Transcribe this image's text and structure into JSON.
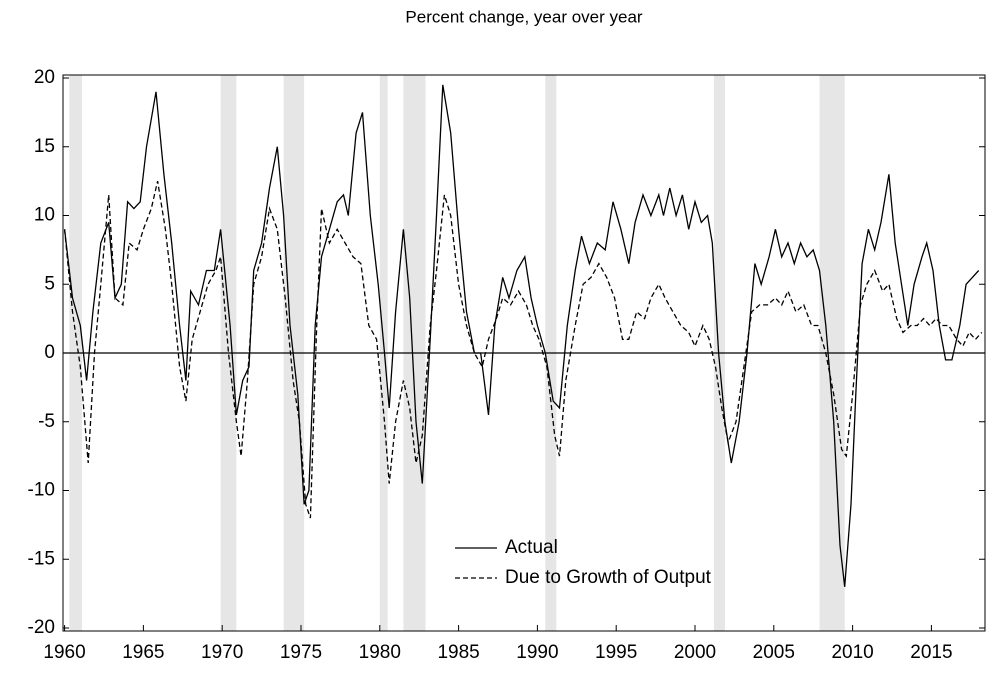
{
  "chart_data": {
    "type": "line",
    "title": "Percent change, year over year",
    "xlim": [
      1959.9,
      2018.4
    ],
    "xticks": [
      1960,
      1965,
      1970,
      1975,
      1980,
      1985,
      1990,
      1995,
      2000,
      2005,
      2010,
      2015
    ],
    "ylim": [
      -20,
      20
    ],
    "yticks": [
      -20,
      -15,
      -10,
      -5,
      0,
      5,
      10,
      15,
      20
    ],
    "zero_line": true,
    "legend": "lower center",
    "shade_color": "#e6e6e6",
    "shaded_periods": [
      [
        1960.3,
        1961.1
      ],
      [
        1969.9,
        1970.9
      ],
      [
        1973.9,
        1975.2
      ],
      [
        1980.0,
        1980.5
      ],
      [
        1981.5,
        1982.9
      ],
      [
        1990.5,
        1991.2
      ],
      [
        2001.2,
        2001.9
      ],
      [
        2007.9,
        2009.5
      ]
    ],
    "series": [
      {
        "name": "Actual",
        "color": "#000000",
        "style": "solid",
        "x": [
          1960.0,
          1960.5,
          1961.0,
          1961.4,
          1961.8,
          1962.3,
          1962.8,
          1963.2,
          1963.6,
          1964.0,
          1964.4,
          1964.8,
          1965.2,
          1965.8,
          1966.3,
          1966.8,
          1967.3,
          1967.7,
          1968.0,
          1968.5,
          1969.0,
          1969.5,
          1969.9,
          1970.5,
          1970.9,
          1971.3,
          1971.7,
          1972.0,
          1972.5,
          1973.0,
          1973.5,
          1973.9,
          1974.3,
          1974.8,
          1975.2,
          1975.5,
          1975.9,
          1976.3,
          1976.8,
          1977.3,
          1977.7,
          1978.0,
          1978.5,
          1978.9,
          1979.4,
          1979.9,
          1980.3,
          1980.6,
          1981.0,
          1981.5,
          1981.9,
          1982.3,
          1982.7,
          1983.2,
          1983.6,
          1984.0,
          1984.5,
          1985.0,
          1985.5,
          1986.0,
          1986.4,
          1986.9,
          1987.3,
          1987.8,
          1988.2,
          1988.7,
          1989.2,
          1989.6,
          1990.0,
          1990.5,
          1991.0,
          1991.4,
          1991.9,
          1992.4,
          1992.8,
          1993.3,
          1993.8,
          1994.3,
          1994.8,
          1995.3,
          1995.8,
          1996.2,
          1996.7,
          1997.2,
          1997.7,
          1998.0,
          1998.4,
          1998.8,
          1999.2,
          1999.6,
          2000.0,
          2000.4,
          2000.8,
          2001.1,
          2001.5,
          2001.9,
          2002.3,
          2002.8,
          2003.3,
          2003.8,
          2004.2,
          2004.7,
          2005.1,
          2005.5,
          2005.9,
          2006.3,
          2006.7,
          2007.1,
          2007.5,
          2007.9,
          2008.3,
          2008.8,
          2009.2,
          2009.5,
          2009.9,
          2010.2,
          2010.6,
          2011.0,
          2011.4,
          2011.8,
          2012.3,
          2012.7,
          2013.1,
          2013.5,
          2013.9,
          2014.4,
          2014.7,
          2015.1,
          2015.5,
          2015.9,
          2016.3,
          2016.8,
          2017.2,
          2017.6,
          2018.0
        ],
        "values": [
          9,
          4,
          2,
          -2,
          3,
          8,
          9.5,
          4,
          5,
          11,
          10.5,
          11,
          15,
          19,
          13,
          8,
          2,
          -2,
          4.5,
          3.5,
          6,
          6,
          9,
          2,
          -4.5,
          -2,
          -1,
          6,
          8,
          12,
          15,
          10,
          2,
          -3,
          -11,
          -10,
          2,
          7,
          9,
          11,
          11.5,
          10,
          16,
          17.5,
          10,
          5,
          0,
          -4,
          3,
          9,
          4,
          -5,
          -9.5,
          1,
          10,
          19.5,
          16,
          9,
          3,
          0,
          0,
          -4.5,
          2,
          5.5,
          4,
          6,
          7,
          4,
          2,
          0,
          -3.5,
          -4,
          2,
          6,
          8.5,
          6.5,
          8,
          7.5,
          11,
          9,
          6.5,
          9.5,
          11.5,
          10,
          11.5,
          10,
          12,
          10,
          11.5,
          9,
          11,
          9.5,
          10,
          8,
          0,
          -5,
          -8,
          -5,
          0,
          6.5,
          5,
          7,
          9,
          7,
          8,
          6.5,
          8,
          7,
          7.5,
          6,
          2,
          -5,
          -14,
          -17,
          -11,
          -3,
          6.5,
          9,
          7.5,
          9.5,
          13,
          8,
          5,
          2,
          5,
          7,
          8,
          6,
          2,
          -0.5,
          -0.5,
          2,
          5,
          5.5,
          6
        ]
      },
      {
        "name": "Due to Growth of Output",
        "color": "#000000",
        "style": "dashed",
        "x": [
          1960.0,
          1960.5,
          1961.0,
          1961.5,
          1961.9,
          1962.3,
          1962.8,
          1963.2,
          1963.7,
          1964.1,
          1964.6,
          1965.0,
          1965.5,
          1965.9,
          1966.4,
          1966.8,
          1967.3,
          1967.7,
          1968.1,
          1968.6,
          1969.1,
          1969.6,
          1969.9,
          1970.4,
          1970.9,
          1971.2,
          1971.6,
          1972.0,
          1972.5,
          1973.0,
          1973.5,
          1974.0,
          1974.5,
          1974.9,
          1975.3,
          1975.6,
          1976.0,
          1976.3,
          1976.8,
          1977.3,
          1977.8,
          1978.3,
          1978.8,
          1979.3,
          1979.8,
          1980.3,
          1980.6,
          1981.0,
          1981.5,
          1981.9,
          1982.3,
          1982.7,
          1983.2,
          1983.6,
          1984.1,
          1984.5,
          1985.0,
          1985.5,
          1986.0,
          1986.5,
          1986.9,
          1987.4,
          1987.8,
          1988.3,
          1988.8,
          1989.3,
          1989.7,
          1990.1,
          1990.6,
          1991.1,
          1991.4,
          1991.8,
          1992.4,
          1992.9,
          1993.4,
          1993.9,
          1994.4,
          1994.9,
          1995.4,
          1995.8,
          1996.3,
          1996.8,
          1997.2,
          1997.7,
          1998.1,
          1998.6,
          1999.1,
          1999.6,
          2000.0,
          2000.5,
          2000.9,
          2001.3,
          2001.7,
          2002.1,
          2002.6,
          2003.1,
          2003.6,
          2004.1,
          2004.6,
          2005.1,
          2005.5,
          2005.9,
          2006.4,
          2006.9,
          2007.4,
          2007.8,
          2008.3,
          2008.8,
          2009.3,
          2009.6,
          2010.0,
          2010.5,
          2010.9,
          2011.4,
          2011.9,
          2012.3,
          2012.8,
          2013.2,
          2013.7,
          2014.1,
          2014.5,
          2014.9,
          2015.3,
          2015.7,
          2016.1,
          2016.6,
          2017.0,
          2017.4,
          2017.8,
          2018.2
        ],
        "values": [
          9,
          3,
          -1,
          -8,
          0,
          5,
          11.5,
          4,
          3.5,
          8,
          7.5,
          9,
          10.5,
          12.5,
          9,
          5,
          -1,
          -3.5,
          1,
          3,
          5,
          6,
          7,
          0,
          -5,
          -7.5,
          -2,
          5,
          7,
          10.5,
          9,
          4,
          -2,
          -5,
          -11,
          -12,
          2,
          10.5,
          8,
          9,
          8,
          7,
          6.5,
          2,
          1,
          -5,
          -9.5,
          -5,
          -2,
          -4,
          -8,
          -6,
          2,
          6,
          11.5,
          10,
          5,
          2,
          0,
          -1,
          1,
          2.5,
          4,
          3.5,
          4.5,
          3.5,
          2,
          1,
          -1,
          -6,
          -7.5,
          -2,
          2,
          5,
          5.5,
          6.5,
          5.5,
          4,
          1,
          1,
          3,
          2.5,
          4,
          5,
          4,
          3,
          2,
          1.5,
          0.5,
          2,
          1,
          -1,
          -4,
          -6.5,
          -5,
          -1,
          3,
          3.5,
          3.5,
          4,
          3.5,
          4.5,
          3,
          3.5,
          2,
          2,
          0,
          -3,
          -7,
          -7.5,
          -3,
          3.5,
          5,
          6,
          4.5,
          5,
          2.5,
          1.5,
          2,
          2,
          2.5,
          2,
          2.5,
          2,
          2,
          1,
          0.5,
          1.5,
          1,
          1.5
        ]
      }
    ]
  }
}
